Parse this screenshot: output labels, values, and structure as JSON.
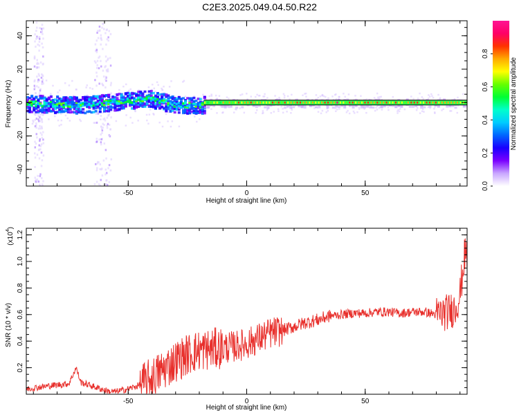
{
  "title": "C2E3.2025.049.04.50.R22",
  "colors": {
    "snr_line": "#e8302c",
    "trace_band_inner": "#2dff5a",
    "trace_core": "#ff2a2a",
    "frame": "#000000"
  },
  "chart_data": [
    {
      "type": "heatmap",
      "xlabel": "Height of straight line (km)",
      "ylabel": "Frequency (Hz)",
      "xlim": [
        -93,
        93
      ],
      "ylim": [
        -50,
        49
      ],
      "xticks": [
        -50,
        0,
        50
      ],
      "yticks": [
        -40,
        -20,
        0,
        20,
        40
      ],
      "colorbar": {
        "label": "Normalized spectral amplitude",
        "range": [
          0,
          1
        ],
        "ticks": [
          0.0,
          0.2,
          0.4,
          0.6,
          0.8
        ],
        "tick_labels": [
          "0.0",
          "0.2",
          "0.4",
          "0.6",
          "0.8"
        ],
        "colormap": [
          "#ffffff",
          "#c9a6ff",
          "#7a00ff",
          "#1a00ff",
          "#0066ff",
          "#00ccff",
          "#00ffcc",
          "#00ff33",
          "#66ff00",
          "#ffff00",
          "#ffaa00",
          "#ff3300",
          "#ff0066",
          "#ff1493"
        ]
      },
      "trace": {
        "description_points": [
          {
            "x": -93,
            "y": 0,
            "amplitude": 0.45
          },
          {
            "x": -70,
            "y": -1,
            "amplitude": 0.5
          },
          {
            "x": -55,
            "y": 1,
            "amplitude": 0.55
          },
          {
            "x": -42,
            "y": 3,
            "amplitude": 0.6
          },
          {
            "x": -30,
            "y": -1,
            "amplitude": 0.6
          },
          {
            "x": -20,
            "y": -1,
            "amplitude": 0.7
          },
          {
            "x": -5,
            "y": 0,
            "amplitude": 0.85
          },
          {
            "x": 20,
            "y": 0,
            "amplitude": 0.9
          },
          {
            "x": 50,
            "y": 0,
            "amplitude": 0.9
          },
          {
            "x": 90,
            "y": 0,
            "amplitude": 0.85
          }
        ]
      }
    },
    {
      "type": "line",
      "xlabel": "Height of straight line (km)",
      "ylabel": "SNR (10 * v/v)",
      "scale_label": "(x10",
      "scale_exponent": "4",
      "xlim": [
        -93,
        93
      ],
      "ylim": [
        0,
        1.25
      ],
      "xticks": [
        -50,
        0,
        50
      ],
      "yticks": [
        0.2,
        0.4,
        0.6,
        0.8,
        1.0,
        1.2
      ],
      "ytick_labels": [
        "0.2",
        "0.4",
        "0.6",
        "0.8",
        "1.0",
        "1.2"
      ],
      "series": [
        {
          "x": [
            -93,
            -85,
            -75,
            -72,
            -70,
            -65,
            -58,
            -55,
            -50,
            -45,
            -40,
            -35,
            -30,
            -25,
            -20,
            -15,
            -10,
            -5,
            0,
            5,
            10,
            15,
            20,
            25,
            30,
            35,
            40,
            45,
            50,
            55,
            60,
            65,
            70,
            75,
            80,
            85,
            88,
            90,
            92
          ],
          "y": [
            0.04,
            0.06,
            0.08,
            0.2,
            0.09,
            0.06,
            0.02,
            0.02,
            0.04,
            0.07,
            0.12,
            0.19,
            0.25,
            0.3,
            0.33,
            0.34,
            0.35,
            0.36,
            0.38,
            0.42,
            0.46,
            0.48,
            0.51,
            0.54,
            0.56,
            0.59,
            0.6,
            0.61,
            0.61,
            0.62,
            0.62,
            0.61,
            0.62,
            0.62,
            0.6,
            0.62,
            0.65,
            0.75,
            1.05
          ]
        }
      ]
    }
  ]
}
